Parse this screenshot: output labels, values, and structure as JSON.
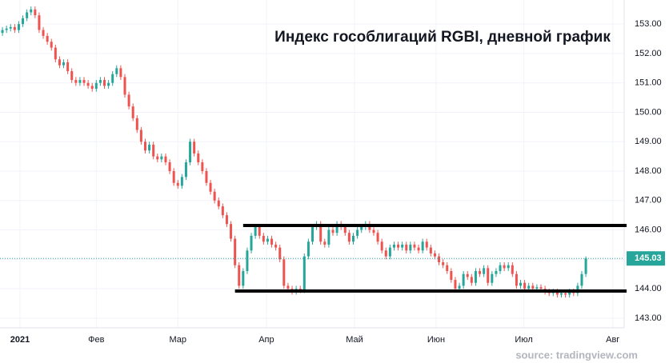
{
  "chart_data": {
    "type": "candlestick",
    "title": "Индекс гособлигаций RGBI, дневной график",
    "source": "source: tradingview.com",
    "candles": [
      [
        152.7,
        152.9,
        152.6,
        152.8
      ],
      [
        152.8,
        152.95,
        152.7,
        152.85
      ],
      [
        152.85,
        153.0,
        152.75,
        152.9
      ],
      [
        152.9,
        153.0,
        152.7,
        152.8
      ],
      [
        152.8,
        153.1,
        152.7,
        153.0
      ],
      [
        153.0,
        153.3,
        152.9,
        153.2
      ],
      [
        153.2,
        153.5,
        153.1,
        153.4
      ],
      [
        153.4,
        153.6,
        153.3,
        153.5
      ],
      [
        153.5,
        153.6,
        153.2,
        153.3
      ],
      [
        153.3,
        153.4,
        152.7,
        152.8
      ],
      [
        152.8,
        152.9,
        152.5,
        152.6
      ],
      [
        152.6,
        152.7,
        152.3,
        152.4
      ],
      [
        152.4,
        152.5,
        152.1,
        152.2
      ],
      [
        152.2,
        152.3,
        151.7,
        151.8
      ],
      [
        151.8,
        151.9,
        151.5,
        151.6
      ],
      [
        151.6,
        151.8,
        151.5,
        151.7
      ],
      [
        151.7,
        151.8,
        151.3,
        151.4
      ],
      [
        151.4,
        151.5,
        151.0,
        151.1
      ],
      [
        151.1,
        151.2,
        150.9,
        151.0
      ],
      [
        151.0,
        151.2,
        150.9,
        151.1
      ],
      [
        151.1,
        151.2,
        150.9,
        151.0
      ],
      [
        151.0,
        151.1,
        150.8,
        150.9
      ],
      [
        150.9,
        151.0,
        150.7,
        150.8
      ],
      [
        150.8,
        151.1,
        150.7,
        151.0
      ],
      [
        151.0,
        151.2,
        150.9,
        151.1
      ],
      [
        151.1,
        151.2,
        150.8,
        150.9
      ],
      [
        150.9,
        151.1,
        150.8,
        151.0
      ],
      [
        151.0,
        151.4,
        150.9,
        151.3
      ],
      [
        151.3,
        151.6,
        151.2,
        151.5
      ],
      [
        151.5,
        151.6,
        151.1,
        151.2
      ],
      [
        151.2,
        151.3,
        150.5,
        150.6
      ],
      [
        150.6,
        150.7,
        150.1,
        150.2
      ],
      [
        150.2,
        150.3,
        149.7,
        149.8
      ],
      [
        149.8,
        149.9,
        149.3,
        149.4
      ],
      [
        149.4,
        149.5,
        148.9,
        149.0
      ],
      [
        149.0,
        149.1,
        148.6,
        148.7
      ],
      [
        148.7,
        149.0,
        148.6,
        148.9
      ],
      [
        148.9,
        149.0,
        148.4,
        148.5
      ],
      [
        148.5,
        148.6,
        148.3,
        148.4
      ],
      [
        148.4,
        148.6,
        148.3,
        148.5
      ],
      [
        148.5,
        148.6,
        148.2,
        148.3
      ],
      [
        148.3,
        148.4,
        147.9,
        148.0
      ],
      [
        148.0,
        148.1,
        147.5,
        147.6
      ],
      [
        147.6,
        147.7,
        147.4,
        147.5
      ],
      [
        147.5,
        147.9,
        147.4,
        147.8
      ],
      [
        147.8,
        148.4,
        147.7,
        148.3
      ],
      [
        148.3,
        149.1,
        148.2,
        149.0
      ],
      [
        149.0,
        149.1,
        148.5,
        148.6
      ],
      [
        148.6,
        148.7,
        148.2,
        148.3
      ],
      [
        148.3,
        148.4,
        147.9,
        148.0
      ],
      [
        148.0,
        148.1,
        147.5,
        147.6
      ],
      [
        147.6,
        147.7,
        147.2,
        147.3
      ],
      [
        147.3,
        147.4,
        146.9,
        147.0
      ],
      [
        147.0,
        147.1,
        146.7,
        146.8
      ],
      [
        146.8,
        146.9,
        146.4,
        146.5
      ],
      [
        146.5,
        146.6,
        146.1,
        146.2
      ],
      [
        146.2,
        146.3,
        145.6,
        145.7
      ],
      [
        145.7,
        145.8,
        144.7,
        144.8
      ],
      [
        144.8,
        144.9,
        144.0,
        144.1
      ],
      [
        144.1,
        144.7,
        144.0,
        144.6
      ],
      [
        144.6,
        145.4,
        144.5,
        145.3
      ],
      [
        145.3,
        145.9,
        145.2,
        145.8
      ],
      [
        145.8,
        146.2,
        145.7,
        146.1
      ],
      [
        146.1,
        146.2,
        145.7,
        145.8
      ],
      [
        145.8,
        145.9,
        145.5,
        145.6
      ],
      [
        145.6,
        145.8,
        145.5,
        145.7
      ],
      [
        145.7,
        145.8,
        145.4,
        145.5
      ],
      [
        145.5,
        145.6,
        145.3,
        145.4
      ],
      [
        145.4,
        145.5,
        144.9,
        145.0
      ],
      [
        145.0,
        145.1,
        144.0,
        144.1
      ],
      [
        144.1,
        144.2,
        143.9,
        144.0
      ],
      [
        144.0,
        144.1,
        143.8,
        143.9
      ],
      [
        143.9,
        144.1,
        143.8,
        144.0
      ],
      [
        144.0,
        144.1,
        143.85,
        143.95
      ],
      [
        143.95,
        145.2,
        143.85,
        145.1
      ],
      [
        145.1,
        145.7,
        145.0,
        145.6
      ],
      [
        145.6,
        146.2,
        145.5,
        146.1
      ],
      [
        146.1,
        146.3,
        146.0,
        146.2
      ],
      [
        146.2,
        146.3,
        145.5,
        145.6
      ],
      [
        145.6,
        145.7,
        145.4,
        145.5
      ],
      [
        145.5,
        146.1,
        145.4,
        146.0
      ],
      [
        146.0,
        146.1,
        145.8,
        145.9
      ],
      [
        145.9,
        146.3,
        145.8,
        146.2
      ],
      [
        146.2,
        146.3,
        146.0,
        146.1
      ],
      [
        146.1,
        146.2,
        145.8,
        145.9
      ],
      [
        145.9,
        146.0,
        145.5,
        145.6
      ],
      [
        145.6,
        145.9,
        145.5,
        145.8
      ],
      [
        145.8,
        146.1,
        145.7,
        146.0
      ],
      [
        146.0,
        146.2,
        145.9,
        146.1
      ],
      [
        146.1,
        146.3,
        146.0,
        146.2
      ],
      [
        146.2,
        146.3,
        145.9,
        146.0
      ],
      [
        146.0,
        146.1,
        145.8,
        145.9
      ],
      [
        145.9,
        146.0,
        145.5,
        145.6
      ],
      [
        145.6,
        145.7,
        145.2,
        145.3
      ],
      [
        145.3,
        145.4,
        145.0,
        145.1
      ],
      [
        145.1,
        145.5,
        145.0,
        145.4
      ],
      [
        145.4,
        145.6,
        145.3,
        145.5
      ],
      [
        145.5,
        145.6,
        145.3,
        145.4
      ],
      [
        145.4,
        145.6,
        145.3,
        145.5
      ],
      [
        145.5,
        145.6,
        145.2,
        145.3
      ],
      [
        145.3,
        145.6,
        145.2,
        145.5
      ],
      [
        145.5,
        145.6,
        145.3,
        145.4
      ],
      [
        145.4,
        145.5,
        145.2,
        145.3
      ],
      [
        145.3,
        145.7,
        145.2,
        145.6
      ],
      [
        145.6,
        145.7,
        145.3,
        145.4
      ],
      [
        145.4,
        145.5,
        145.1,
        145.2
      ],
      [
        145.2,
        145.3,
        145.0,
        145.1
      ],
      [
        145.1,
        145.2,
        144.8,
        144.9
      ],
      [
        144.9,
        145.0,
        144.7,
        144.8
      ],
      [
        144.8,
        144.9,
        144.5,
        144.6
      ],
      [
        144.6,
        144.7,
        144.2,
        144.3
      ],
      [
        144.3,
        144.4,
        143.9,
        144.0
      ],
      [
        144.0,
        144.2,
        143.9,
        144.1
      ],
      [
        144.1,
        144.6,
        144.0,
        144.5
      ],
      [
        144.5,
        144.6,
        144.3,
        144.4
      ],
      [
        144.4,
        144.5,
        144.1,
        144.2
      ],
      [
        144.2,
        144.7,
        144.1,
        144.6
      ],
      [
        144.6,
        144.7,
        144.4,
        144.5
      ],
      [
        144.5,
        144.8,
        144.4,
        144.7
      ],
      [
        144.7,
        144.8,
        144.1,
        144.2
      ],
      [
        144.2,
        144.6,
        144.1,
        144.5
      ],
      [
        144.5,
        144.7,
        144.4,
        144.6
      ],
      [
        144.6,
        144.9,
        144.5,
        144.8
      ],
      [
        144.8,
        144.9,
        144.6,
        144.7
      ],
      [
        144.7,
        144.9,
        144.6,
        144.8
      ],
      [
        144.8,
        144.9,
        144.4,
        144.5
      ],
      [
        144.5,
        144.6,
        144.0,
        144.1
      ],
      [
        144.1,
        144.3,
        144.0,
        144.2
      ],
      [
        144.2,
        144.3,
        143.9,
        144.0
      ],
      [
        144.0,
        144.2,
        143.9,
        144.1
      ],
      [
        144.1,
        144.2,
        143.9,
        144.0
      ],
      [
        144.0,
        144.15,
        143.9,
        144.05
      ],
      [
        144.05,
        144.15,
        143.9,
        144.0
      ],
      [
        144.0,
        144.1,
        143.8,
        143.9
      ],
      [
        143.9,
        144.0,
        143.75,
        143.85
      ],
      [
        143.85,
        144.0,
        143.75,
        143.9
      ],
      [
        143.9,
        144.0,
        143.7,
        143.8
      ],
      [
        143.8,
        143.95,
        143.7,
        143.85
      ],
      [
        143.85,
        143.95,
        143.7,
        143.8
      ],
      [
        143.8,
        144.0,
        143.7,
        143.9
      ],
      [
        143.9,
        144.0,
        143.75,
        143.85
      ],
      [
        143.85,
        144.2,
        143.75,
        144.1
      ],
      [
        144.1,
        144.6,
        144.0,
        144.5
      ],
      [
        144.5,
        145.1,
        144.4,
        145.03
      ]
    ],
    "up_color": "#26a69a",
    "down_color": "#ef5350",
    "last_price": 145.03,
    "levels": [
      {
        "value": 146.15,
        "from": 59
      },
      {
        "value": 143.92,
        "from": 57
      }
    ],
    "xlim": [
      -0.6,
      152.4
    ],
    "xticks": [
      {
        "value": 4.3,
        "label": "2021"
      },
      {
        "value": 23,
        "label": "Фев"
      },
      {
        "value": 43,
        "label": "Мар"
      },
      {
        "value": 64.7,
        "label": "Апр"
      },
      {
        "value": 86.3,
        "label": "Май"
      },
      {
        "value": 106.3,
        "label": "Июн"
      },
      {
        "value": 127.8,
        "label": "Июл"
      },
      {
        "value": 149.6,
        "label": "Авг"
      }
    ],
    "ylim": [
      142.67,
      153.82
    ],
    "yticks": [
      {
        "value": 143,
        "label": "143.00"
      },
      {
        "value": 144,
        "label": "144.00"
      },
      {
        "value": 145,
        "label": "145.00"
      },
      {
        "value": 146,
        "label": "146.00"
      },
      {
        "value": 147,
        "label": "147.00"
      },
      {
        "value": 148,
        "label": "148.00"
      },
      {
        "value": 149,
        "label": "149.00"
      },
      {
        "value": 150,
        "label": "150.00"
      },
      {
        "value": 151,
        "label": "151.00"
      },
      {
        "value": 152,
        "label": "152.00"
      },
      {
        "value": 153,
        "label": "153.00"
      }
    ],
    "grid": true
  }
}
